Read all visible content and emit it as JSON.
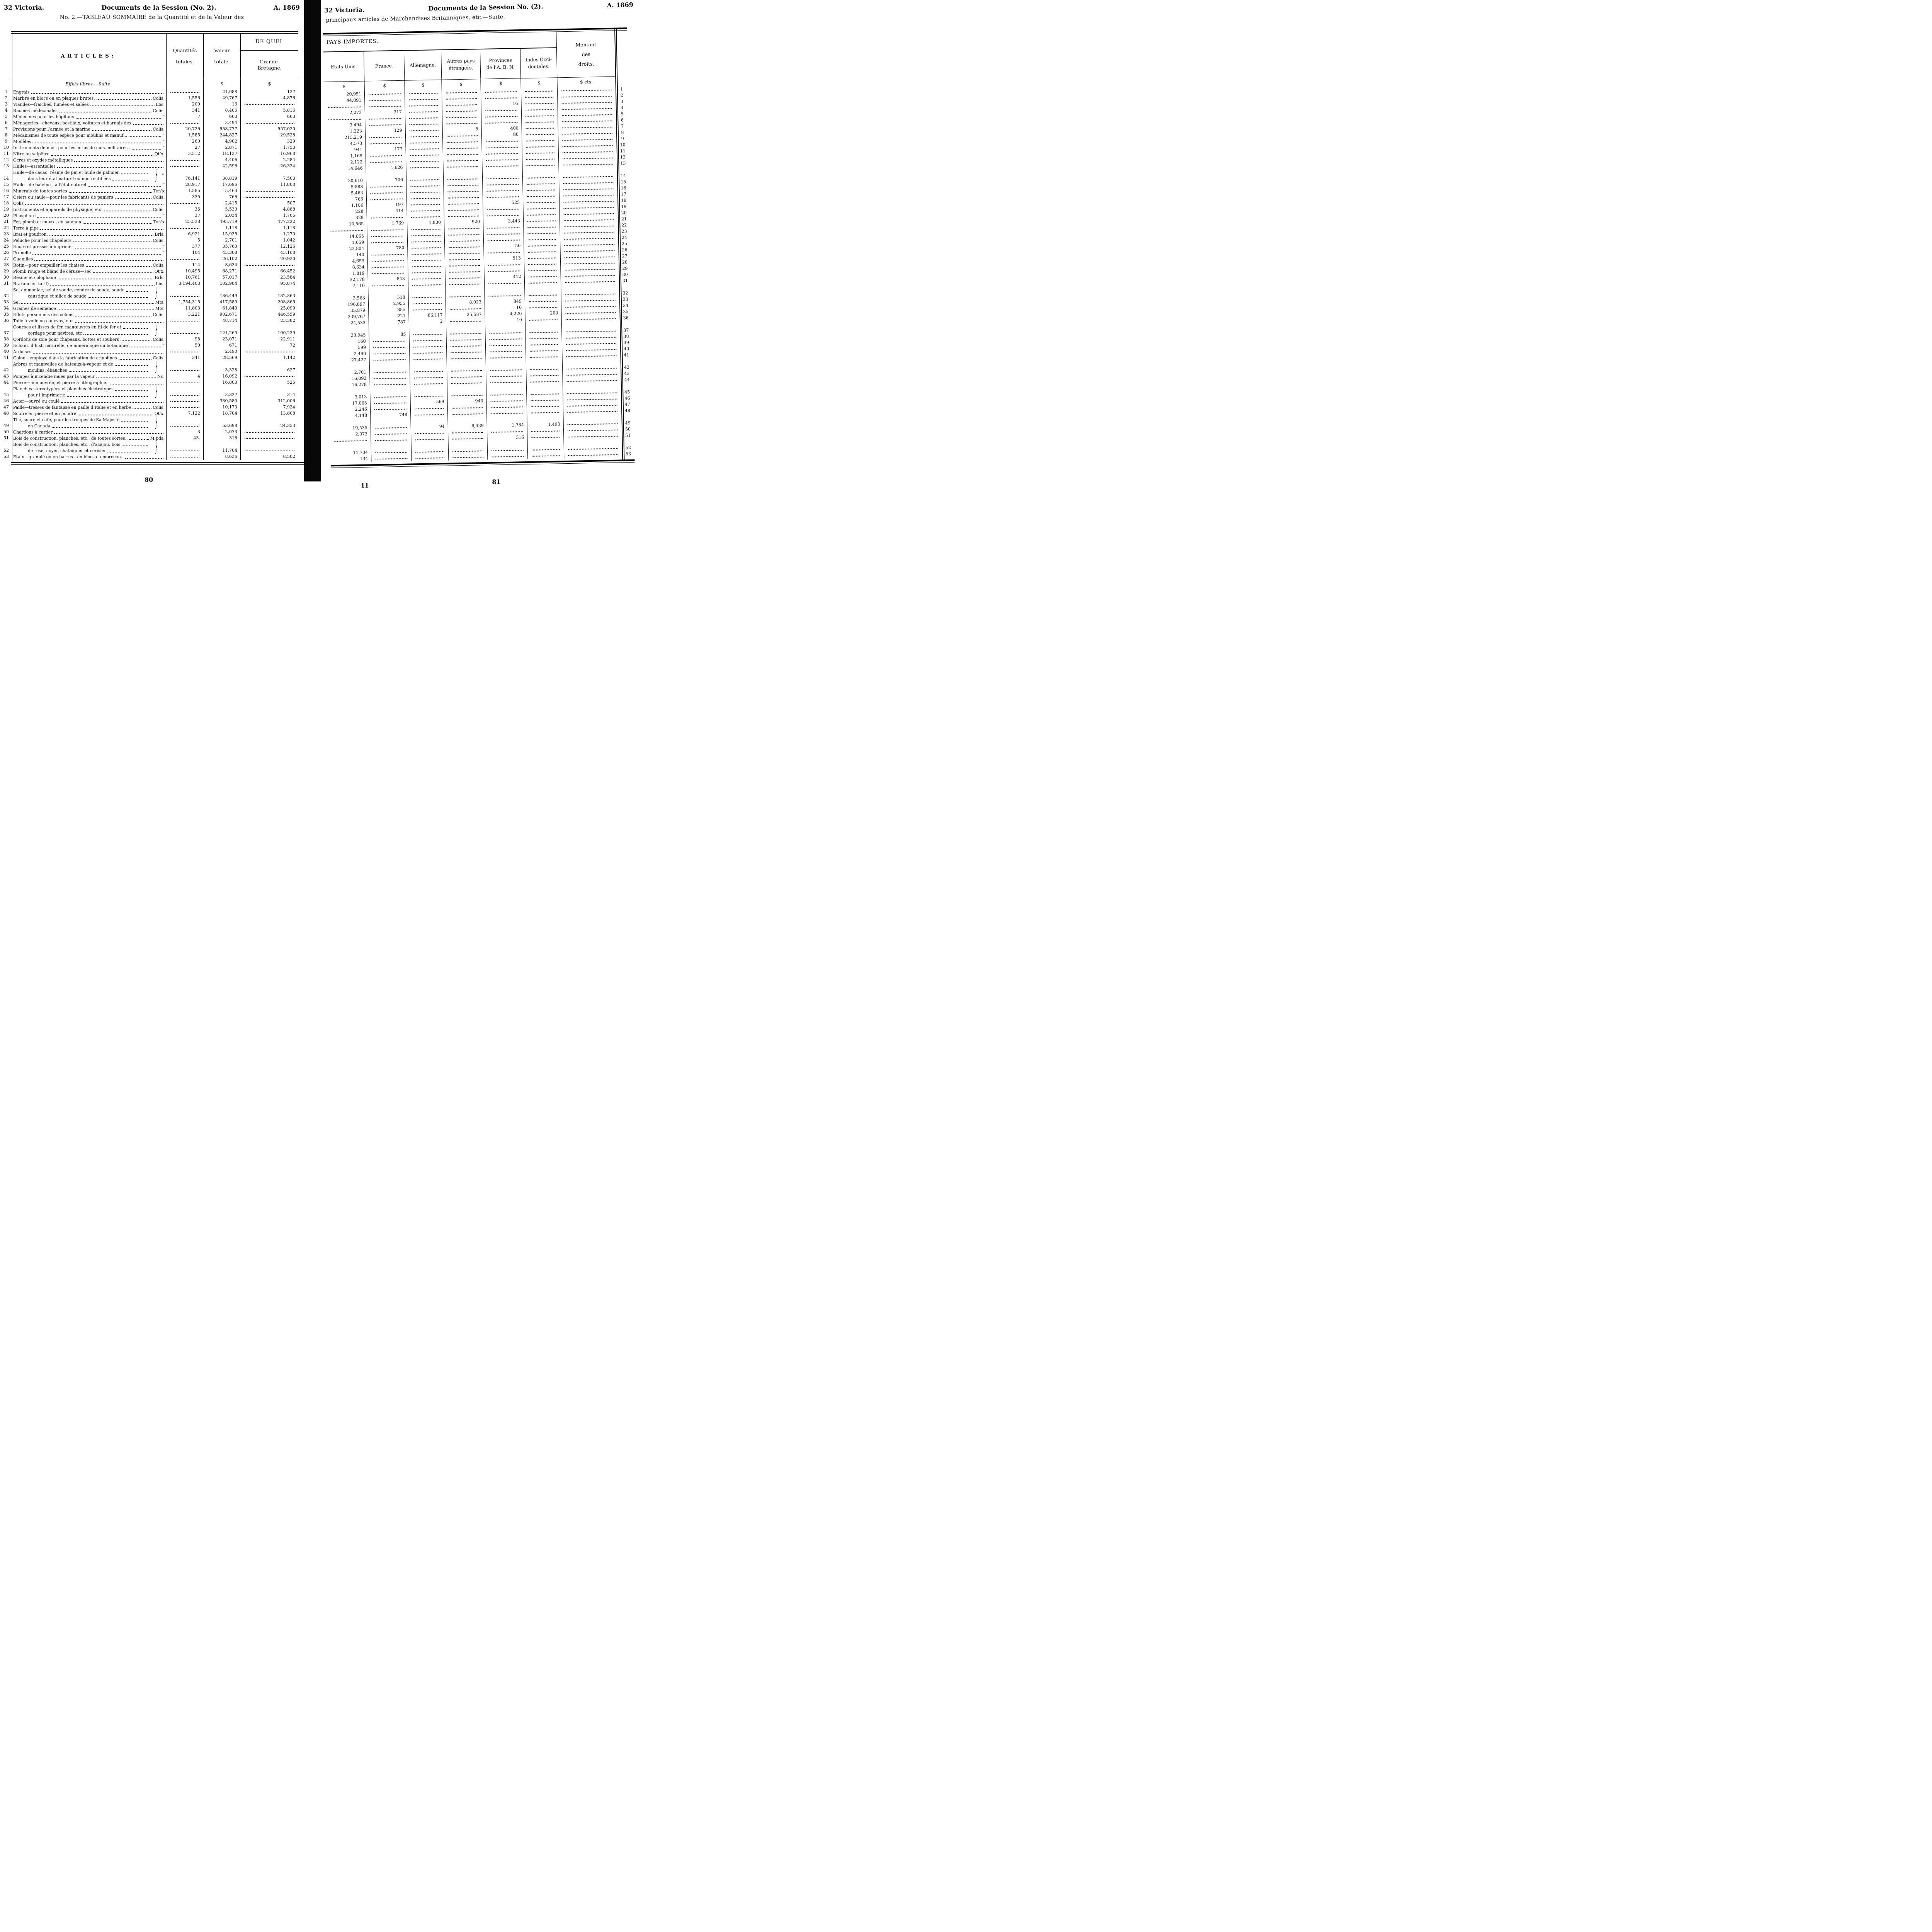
{
  "left_page": {
    "header_left": "32 Victoria.",
    "header_center": "Documents de la Session (No. 2).",
    "header_right": "A. 1869",
    "title": "No. 2.—TABLEAU SOMMAIRE de la Quantité et de la Valeur des",
    "col_articles": "ARTICLES:",
    "col_quantites_1": "Quantités",
    "col_quantites_2": "totales.",
    "col_valeur_1": "Valeur",
    "col_valeur_2": "totale.",
    "col_dequel": "DE QUEL",
    "col_gb_1": "Grande-",
    "col_gb_2": "Bretagne.",
    "section": "Effets libres.—Suite.",
    "dollar": "$",
    "page_number": "80"
  },
  "right_page": {
    "header_left": "32 Victoria.",
    "header_center": "Documents de la Session No. (2).",
    "header_right": "A. 1869",
    "title": "principaux articles de Marchandises Britanniques, etc.—Suite.",
    "pays_importes": "PAYS IMPORTES.",
    "col_etats_unis": "Etats-Unis.",
    "col_france": "France.",
    "col_allemagne": "Allemagne.",
    "col_autres_1": "Autres pays",
    "col_autres_2": "étrangers.",
    "col_provinces_1": "Provinces",
    "col_provinces_2": "de l’A. B. N.",
    "col_indes_1": "Indes  Occi-",
    "col_indes_2": "dentales.",
    "montant_1": "Montant",
    "montant_2": "des",
    "montant_3": "droits.",
    "dollar": "$",
    "dollar_cts": "$   cts.",
    "signature": "11",
    "page_number": "81"
  },
  "rows": [
    {
      "n": "1",
      "a": [
        "Engrais"
      ],
      "u": "",
      "q": "",
      "v": "21,088",
      "gb": "137",
      "eu": "20,951",
      "fr": "",
      "de": "",
      "ap": "",
      "pr": "",
      "io": ""
    },
    {
      "n": "2",
      "a": [
        "Marbre en blocs ou en plaques brutes."
      ],
      "u": "Colis.",
      "q": "1,556",
      "v": "49,767",
      "gb": "4,876",
      "eu": "44,891",
      "fr": "",
      "de": "",
      "ap": "",
      "pr": "",
      "io": ""
    },
    {
      "n": "3",
      "a": [
        "Viandes—fraiches, fumées et salées"
      ],
      "u": "Lbs.",
      "q": "200",
      "v": "16",
      "gb": "",
      "eu": "",
      "fr": "",
      "de": "",
      "ap": "",
      "pr": "16",
      "io": ""
    },
    {
      "n": "4",
      "a": [
        "Racines médecinales"
      ],
      "u": "Colis.",
      "q": "341",
      "v": "8,406",
      "gb": "5,816",
      "eu": "2,273",
      "fr": "317",
      "de": "",
      "ap": "",
      "pr": "",
      "io": ""
    },
    {
      "n": "5",
      "a": [
        "Médecines pour les hôpitaux"
      ],
      "u": "“",
      "q": "7",
      "v": "663",
      "gb": "663",
      "eu": "",
      "fr": "",
      "de": "",
      "ap": "",
      "pr": "",
      "io": ""
    },
    {
      "n": "6",
      "a": [
        "Ménageries—chevaux, bestiaux, voitures et harnais des"
      ],
      "u": "",
      "q": "",
      "v": "3,494",
      "gb": "",
      "eu": "3,494",
      "fr": "",
      "de": "",
      "ap": "",
      "pr": "",
      "io": ""
    },
    {
      "n": "7",
      "a": [
        "Provisions pour l’armée et la marine"
      ],
      "u": "Colis.",
      "q": "20,726",
      "v": "558,777",
      "gb": "557,020",
      "eu": "1,223",
      "fr": "129",
      "de": "",
      "ap": "5",
      "pr": "400",
      "io": ""
    },
    {
      "n": "8",
      "a": [
        "Mécanismes de toute espèce pour moulins et manuf..."
      ],
      "u": "“",
      "q": "1,585",
      "v": "244,827",
      "gb": "29,528",
      "eu": "215,219",
      "fr": "",
      "de": "",
      "ap": "",
      "pr": "80",
      "io": ""
    },
    {
      "n": "9",
      "a": [
        "Modèles"
      ],
      "u": "“",
      "q": "260",
      "v": "4,902",
      "gb": "329",
      "eu": "4,573",
      "fr": "",
      "de": "",
      "ap": "",
      "pr": "",
      "io": ""
    },
    {
      "n": "10",
      "a": [
        "Instruments de mus. pour les corps de mus. militaires.."
      ],
      "u": "“",
      "q": "27",
      "v": "2,871",
      "gb": "1,753",
      "eu": "941",
      "fr": "177",
      "de": "",
      "ap": "",
      "pr": "",
      "io": ""
    },
    {
      "n": "11",
      "a": [
        "Nitre ou salpêtre"
      ],
      "u": "Qt’x.",
      "q": "3,512",
      "v": "18,137",
      "gb": "16,968",
      "eu": "1,169",
      "fr": "",
      "de": "",
      "ap": "",
      "pr": "",
      "io": ""
    },
    {
      "n": "12",
      "a": [
        "Ocres et oxydes métalliques"
      ],
      "u": "",
      "q": "",
      "v": "4,406",
      "gb": "2,284",
      "eu": "2,122",
      "fr": "",
      "de": "",
      "ap": "",
      "pr": "",
      "io": ""
    },
    {
      "n": "13",
      "a": [
        "Huiles—essentielles"
      ],
      "u": "",
      "q": "",
      "v": "42,596",
      "gb": "26,324",
      "eu": "14,646",
      "fr": "1,626",
      "de": "",
      "ap": "",
      "pr": "",
      "io": ""
    },
    {
      "n": "14",
      "a": [
        "Huile—de cacao, résine de pin et huile de palmier,",
        "dans leur état naturel ou non rectifiées"
      ],
      "u": "“",
      "brace": true,
      "q": "76,141",
      "v": "38,819",
      "gb": "7,503",
      "eu": "30,610",
      "fr": "706",
      "de": "",
      "ap": "",
      "pr": "",
      "io": ""
    },
    {
      "n": "15",
      "a": [
        "Huile—de baleine—à l’état naturel"
      ],
      "u": "“",
      "q": "28,917",
      "v": "17,696",
      "gb": "11,808",
      "eu": "5,888",
      "fr": "",
      "de": "",
      "ap": "",
      "pr": "",
      "io": ""
    },
    {
      "n": "16",
      "a": [
        "Minerais de toutes sortes"
      ],
      "u": "Ton’x",
      "q": "1,585",
      "v": "5,463",
      "gb": "",
      "eu": "5,463",
      "fr": "",
      "de": "",
      "ap": "",
      "pr": "",
      "io": ""
    },
    {
      "n": "17",
      "a": [
        "Osiers ou saule—pour les fabricants de paniers"
      ],
      "u": "Colis.",
      "q": "335",
      "v": "766",
      "gb": "",
      "eu": "766",
      "fr": "",
      "de": "",
      "ap": "",
      "pr": "",
      "io": ""
    },
    {
      "n": "18",
      "a": [
        "Colis"
      ],
      "u": "",
      "q": "",
      "v": "2,415",
      "gb": "507",
      "eu": "1,186",
      "fr": "197",
      "de": "",
      "ap": "",
      "pr": "525",
      "io": ""
    },
    {
      "n": "19",
      "a": [
        "Instruments et appareils de physique, etc."
      ],
      "u": "Colis.",
      "q": "35",
      "v": "5,530",
      "gb": "4,888",
      "eu": "228",
      "fr": "414",
      "de": "",
      "ap": "",
      "pr": "",
      "io": ""
    },
    {
      "n": "20",
      "a": [
        "Phosphore"
      ],
      "u": "“",
      "q": "37",
      "v": "2,034",
      "gb": "1,705",
      "eu": "329",
      "fr": "",
      "de": "",
      "ap": "",
      "pr": "",
      "io": ""
    },
    {
      "n": "21",
      "a": [
        "Fer, plomb et cuivre, en saumon"
      ],
      "u": "Ton’x",
      "q": "25,538",
      "v": "495,719",
      "gb": "477,222",
      "eu": "10,565",
      "fr": "1,769",
      "de": "1,800",
      "ap": "920",
      "pr": "3,443",
      "io": ""
    },
    {
      "n": "22",
      "a": [
        "Terre à pipe"
      ],
      "u": "",
      "q": "",
      "v": "1,118",
      "gb": "1,118",
      "eu": "",
      "fr": "",
      "de": "",
      "ap": "",
      "pr": "",
      "io": ""
    },
    {
      "n": "23",
      "a": [
        "Brai et goudron."
      ],
      "u": "Brls.",
      "q": "6,921",
      "v": "15,935",
      "gb": "1,270",
      "eu": "14,665",
      "fr": "",
      "de": "",
      "ap": "",
      "pr": "",
      "io": ""
    },
    {
      "n": "24",
      "a": [
        "Peluche pour les chapeliers"
      ],
      "u": "Colis.",
      "q": "5",
      "v": "2,701",
      "gb": "1,042",
      "eu": "1,659",
      "fr": "",
      "de": "",
      "ap": "",
      "pr": "",
      "io": ""
    },
    {
      "n": "25",
      "a": [
        "Encre et presses à imprimer"
      ],
      "u": "“",
      "q": "377",
      "v": "35,760",
      "gb": "12,126",
      "eu": "22,804",
      "fr": "780",
      "de": "",
      "ap": "",
      "pr": "50",
      "io": ""
    },
    {
      "n": "26",
      "a": [
        "Prunelle"
      ],
      "u": "“",
      "q": "104",
      "v": "43,308",
      "gb": "43,168",
      "eu": "140",
      "fr": "",
      "de": "",
      "ap": "",
      "pr": "",
      "io": ""
    },
    {
      "n": "27",
      "a": [
        "Guenilles"
      ],
      "u": "",
      "q": "",
      "v": "26,102",
      "gb": "20,930",
      "eu": "4,659",
      "fr": "",
      "de": "",
      "ap": "",
      "pr": "513",
      "io": ""
    },
    {
      "n": "28",
      "a": [
        "Rotin—pour empailler les chaises"
      ],
      "u": "Colis.",
      "q": "114",
      "v": "8,634",
      "gb": "",
      "eu": "8,634",
      "fr": "",
      "de": "",
      "ap": "",
      "pr": "",
      "io": ""
    },
    {
      "n": "29",
      "a": [
        "Plomb rouge et blanc de céruse—sec"
      ],
      "u": "Qt’x.",
      "q": "10,495",
      "v": "68,271",
      "gb": "66,452",
      "eu": "1,819",
      "fr": "",
      "de": "",
      "ap": "",
      "pr": "",
      "io": ""
    },
    {
      "n": "30",
      "a": [
        "Résine et colophane"
      ],
      "u": "Brls.",
      "q": "10,761",
      "v": "57,017",
      "gb": "23,584",
      "eu": "32,178",
      "fr": "843",
      "de": "",
      "ap": "",
      "pr": "412",
      "io": ""
    },
    {
      "n": "31",
      "a": [
        "Riz (ancien tarif)"
      ],
      "u": "Lbs.",
      "q": "3,194,403",
      "v": "102,984",
      "gb": "95,874",
      "eu": "7,110",
      "fr": "",
      "de": "",
      "ap": "",
      "pr": "",
      "io": ""
    },
    {
      "n": "32",
      "a": [
        "Sel ammoniac, sel de soude, cendre de soude, soude",
        "caustique et silice de soude"
      ],
      "brace": true,
      "u": "",
      "q": "",
      "v": "136,449",
      "gb": "132,363",
      "eu": "3,568",
      "fr": "518",
      "de": "",
      "ap": "",
      "pr": "",
      "io": ""
    },
    {
      "n": "33",
      "a": [
        "Sel"
      ],
      "u": "Mts.",
      "q": "1,754,315",
      "v": "417,589",
      "gb": "208,865",
      "eu": "196,897",
      "fr": "2,955",
      "de": "",
      "ap": "8,023",
      "pr": "849",
      "io": ""
    },
    {
      "n": "34",
      "a": [
        "Graines de semence"
      ],
      "u": "Mts.",
      "q": "11,803",
      "v": "61,843",
      "gb": "25,099",
      "eu": "35,879",
      "fr": "855",
      "de": "",
      "ap": "",
      "pr": "10",
      "io": ""
    },
    {
      "n": "35",
      "a": [
        "Effets personnels des colons"
      ],
      "u": "Colis.",
      "q": "3,221",
      "v": "902,671",
      "gb": "446,559",
      "eu": "339,767",
      "fr": "221",
      "de": "86,117",
      "ap": "25,587",
      "pr": "4,220",
      "io": "200"
    },
    {
      "n": "36",
      "a": [
        "Toile à voile ou canevas, etc."
      ],
      "u": "",
      "q": "",
      "v": "48,714",
      "gb": "23,382",
      "eu": "24,533",
      "fr": "787",
      "de": "2",
      "ap": "",
      "pr": "10",
      "io": ""
    },
    {
      "n": "37",
      "a": [
        "Courbes et lisses de fer, manœuvres en fil de fer et",
        "cordage pour navires, etc"
      ],
      "brace": true,
      "u": "",
      "q": "",
      "v": "121,269",
      "gb": "100,239",
      "eu": "20,945",
      "fr": "85",
      "de": "",
      "ap": "",
      "pr": "",
      "io": ""
    },
    {
      "n": "38",
      "a": [
        "Cordons de soie pour chapeaux, bottes et souliers"
      ],
      "u": "Colis.",
      "q": "98",
      "v": "23,071",
      "gb": "22,911",
      "eu": "160",
      "fr": "",
      "de": "",
      "ap": "",
      "pr": "",
      "io": ""
    },
    {
      "n": "39",
      "a": [
        "Echant. d’hist. naturelle, de minéralogie ou botanique"
      ],
      "u": "“",
      "q": "50",
      "v": "671",
      "gb": "72",
      "eu": "599",
      "fr": "",
      "de": "",
      "ap": "",
      "pr": "",
      "io": ""
    },
    {
      "n": "40",
      "a": [
        "Ardoises"
      ],
      "u": "",
      "q": "",
      "v": "2,490",
      "gb": "",
      "eu": "2,490",
      "fr": "",
      "de": "",
      "ap": "",
      "pr": "",
      "io": ""
    },
    {
      "n": "41",
      "a": [
        "Galon—employé dans la fabrication de crinolines"
      ],
      "u": "Colis.",
      "q": "341",
      "v": "28,569",
      "gb": "1,142",
      "eu": "27,427",
      "fr": "",
      "de": "",
      "ap": "",
      "pr": "",
      "io": ""
    },
    {
      "n": "42",
      "a": [
        "Arbres et manivelles de bateaux-à-vapeur et de",
        "moulins, ébauchés"
      ],
      "brace": true,
      "u": "",
      "q": "",
      "v": "3,328",
      "gb": "627",
      "eu": "2,701",
      "fr": "",
      "de": "",
      "ap": "",
      "pr": "",
      "io": ""
    },
    {
      "n": "43",
      "a": [
        "Pompes à incendie mues par la vapeur"
      ],
      "u": "No.",
      "q": "4",
      "v": "16,092",
      "gb": "",
      "eu": "16,092",
      "fr": "",
      "de": "",
      "ap": "",
      "pr": "",
      "io": ""
    },
    {
      "n": "44",
      "a": [
        "Pierre—non ouvrée, et pierre à lithographier"
      ],
      "u": "",
      "q": "",
      "v": "16,803",
      "gb": "525",
      "eu": "16,278",
      "fr": "",
      "de": "",
      "ap": "",
      "pr": "",
      "io": ""
    },
    {
      "n": "45",
      "a": [
        "Planches stereotypées et planches électrotypes",
        "pour l’imprimerie"
      ],
      "brace": true,
      "u": "",
      "q": "",
      "v": "3,327",
      "gb": "314",
      "eu": "3,013",
      "fr": "",
      "de": "",
      "ap": "",
      "pr": "",
      "io": ""
    },
    {
      "n": "46",
      "a": [
        "Acier—ouvré ou coulé"
      ],
      "u": "",
      "q": "",
      "v": "330,580",
      "gb": "312,006",
      "eu": "17,065",
      "fr": "",
      "de": "569",
      "ap": "940",
      "pr": "",
      "io": ""
    },
    {
      "n": "47",
      "a": [
        "Paille—tresses de fantaisie en paille d’Italie et en herbe"
      ],
      "u": "Colis.",
      "q": "",
      "v": "10,170",
      "gb": "7,924",
      "eu": "2,246",
      "fr": "",
      "de": "",
      "ap": "",
      "pr": "",
      "io": ""
    },
    {
      "n": "48",
      "a": [
        "Soufre en pierre et en poudre"
      ],
      "u": "Qt’x.",
      "q": "7,122",
      "v": "18,704",
      "gb": "13,808",
      "eu": "4,148",
      "fr": "748",
      "de": "",
      "ap": "",
      "pr": "",
      "io": ""
    },
    {
      "n": "49",
      "a": [
        "Thé, sucre et café, pour les troupes de Sa Majesté",
        "en Canada"
      ],
      "brace": true,
      "u": "",
      "q": "",
      "v": "53,698",
      "gb": "24,353",
      "eu": "19,535",
      "fr": "",
      "de": "94",
      "ap": "6,439",
      "pr": "1,784",
      "io": "1,493"
    },
    {
      "n": "50",
      "a": [
        "Chardons à carder"
      ],
      "u": "",
      "q": "3",
      "v": "2,073",
      "gb": "",
      "eu": "2,073",
      "fr": "",
      "de": "",
      "ap": "",
      "pr": "",
      "io": ""
    },
    {
      "n": "51",
      "a": [
        "Bois de construction, planches, etc., de toutes sortes.."
      ],
      "u": "M.pds.",
      "q": "43.",
      "v": "316",
      "gb": "",
      "eu": "",
      "fr": "",
      "de": "",
      "ap": "",
      "pr": "316",
      "io": ""
    },
    {
      "n": "52",
      "a": [
        "Bois de construction, planches, etc., d’acajou, bois",
        "de rose, noyer, chataigner et cerisier"
      ],
      "brace": true,
      "u": "",
      "q": "",
      "v": "11,704",
      "gb": "",
      "eu": "11,704",
      "fr": "",
      "de": "",
      "ap": "",
      "pr": "",
      "io": ""
    },
    {
      "n": "53",
      "a": [
        "Etain—granulé ou en barres—en blocs ou morceau.."
      ],
      "u": "",
      "q": "",
      "v": "8,636",
      "gb": "8,502",
      "eu": "134",
      "fr": "",
      "de": "",
      "ap": "",
      "pr": "",
      "io": ""
    }
  ]
}
